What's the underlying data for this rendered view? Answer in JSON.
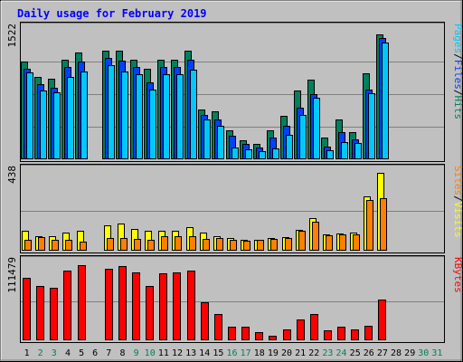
{
  "chart_data": {
    "type": "bar",
    "title": "Daily usage for February 2019",
    "colors": {
      "background": "#c0c0c0",
      "plot_background": "#c0c0c0",
      "title": "#0000ff",
      "hits": "#00805c",
      "files": "#0040ff",
      "pages": "#00c8ff",
      "visits": "#ffff00",
      "sites": "#ff8000",
      "kbytes": "#ff0000",
      "day_label": "#000000",
      "weekend_label": "#00805c"
    },
    "days": [
      "1",
      "2",
      "3",
      "4",
      "5",
      "6",
      "7",
      "8",
      "9",
      "10",
      "11",
      "12",
      "13",
      "14",
      "15",
      "16",
      "17",
      "18",
      "19",
      "20",
      "21",
      "22",
      "23",
      "24",
      "25",
      "26",
      "27",
      "28",
      "29",
      "30",
      "31"
    ],
    "weekend_days": [
      "2",
      "3",
      "9",
      "10",
      "16",
      "17",
      "23",
      "24",
      "30",
      "31"
    ],
    "panels": [
      {
        "id": "hits-files-pages",
        "ymax_label": "1522",
        "ymax": 1522,
        "ylabel_parts": [
          {
            "text": "Pages",
            "color": "#00c8ff"
          },
          {
            "text": "/",
            "color": "#000000"
          },
          {
            "text": "Files",
            "color": "#0040ff"
          },
          {
            "text": "/",
            "color": "#000000"
          },
          {
            "text": "Hits",
            "color": "#00805c"
          }
        ],
        "series": [
          {
            "name": "Hits",
            "color": "#00805c",
            "values": [
              1140,
              960,
              940,
              1160,
              1250,
              null,
              1270,
              1270,
              1160,
              1060,
              1160,
              1160,
              1270,
              580,
              560,
              340,
              220,
              180,
              340,
              510,
              800,
              930,
              250,
              470,
              320,
              1000,
              1460,
              null,
              null,
              null,
              null
            ]
          },
          {
            "name": "Files",
            "color": "#0040ff",
            "values": [
              1060,
              880,
              840,
              1080,
              1140,
              null,
              1180,
              1150,
              1080,
              900,
              1080,
              1080,
              1160,
              520,
              470,
              280,
              180,
              140,
              250,
              390,
              600,
              760,
              150,
              320,
              230,
              810,
              1420,
              null,
              null,
              null,
              null
            ]
          },
          {
            "name": "Pages",
            "color": "#00c8ff",
            "values": [
              1010,
              800,
              780,
              960,
              1020,
              null,
              1100,
              1030,
              990,
              810,
              990,
              990,
              1050,
              460,
              390,
              140,
              120,
              100,
              130,
              290,
              520,
              720,
              110,
              200,
              190,
              770,
              1360,
              null,
              null,
              null,
              null
            ]
          }
        ]
      },
      {
        "id": "visits-sites",
        "ymax_label": "438",
        "ymax": 438,
        "ylabel_parts": [
          {
            "text": "Sites",
            "color": "#ff8000"
          },
          {
            "text": "/",
            "color": "#000000"
          },
          {
            "text": "Visits",
            "color": "#ffff00"
          }
        ],
        "series": [
          {
            "name": "Visits",
            "color": "#ffff00",
            "values": [
              110,
              80,
              80,
              100,
              110,
              null,
              140,
              150,
              120,
              110,
              110,
              110,
              130,
              100,
              80,
              70,
              60,
              60,
              70,
              75,
              115,
              180,
              90,
              95,
              100,
              300,
              430,
              null,
              null,
              null,
              null
            ]
          },
          {
            "name": "Sites",
            "color": "#ff8000",
            "values": [
              60,
              75,
              60,
              60,
              50,
              null,
              70,
              70,
              65,
              60,
              80,
              80,
              80,
              65,
              70,
              60,
              55,
              60,
              65,
              70,
              110,
              160,
              85,
              90,
              90,
              280,
              290,
              null,
              null,
              null,
              null
            ]
          }
        ]
      },
      {
        "id": "kbytes",
        "ymax_label": "111479",
        "ymax": 111479,
        "ylabel_parts": [
          {
            "text": "KBytes",
            "color": "#ff0000"
          }
        ],
        "series": [
          {
            "name": "KBytes",
            "color": "#ff0000",
            "values": [
              89000,
              78000,
              75000,
              100000,
              107000,
              null,
              103000,
              106000,
              97000,
              78000,
              96000,
              97000,
              100000,
              55000,
              38000,
              20000,
              20000,
              12000,
              6000,
              15000,
              30000,
              38000,
              14000,
              20000,
              16000,
              21000,
              58000,
              null,
              null,
              null,
              null
            ]
          }
        ]
      }
    ]
  }
}
